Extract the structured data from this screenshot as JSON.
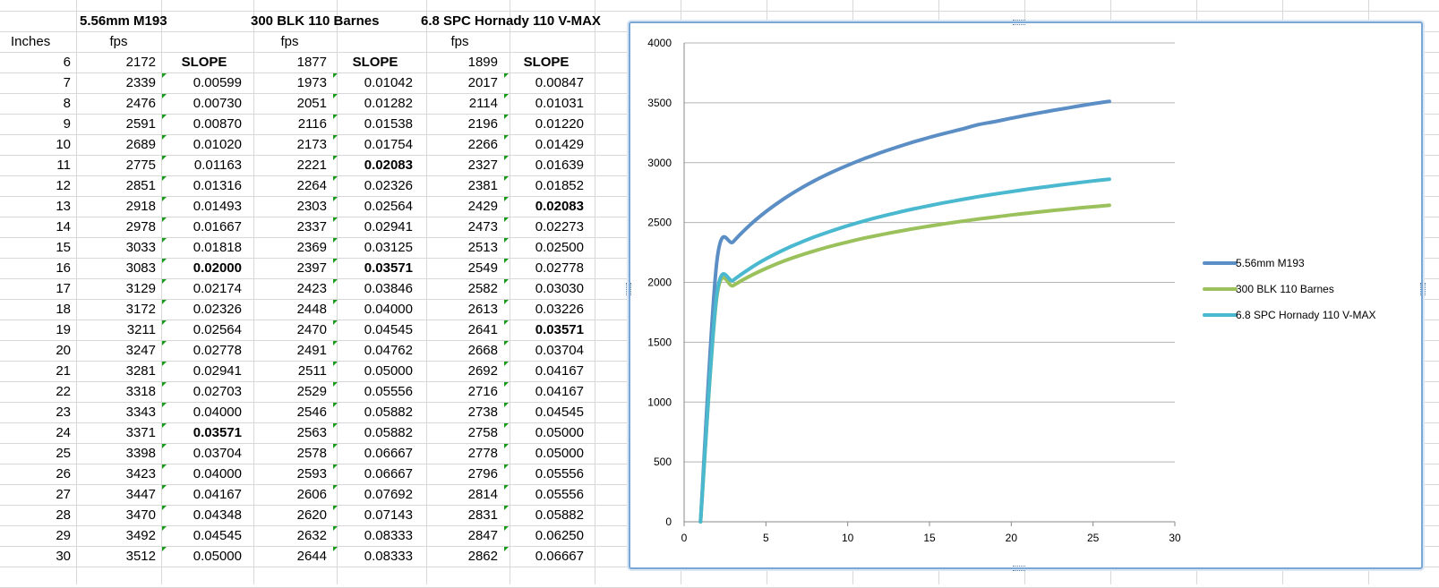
{
  "sheet": {
    "headers": {
      "col_inches": "Inches",
      "series_names": [
        "5.56mm M193",
        "300 BLK 110 Barnes",
        "6.8 SPC Hornady 110 V-MAX"
      ],
      "fps_label": "fps",
      "slope_label": "SLOPE"
    },
    "rows": [
      {
        "inches": "6",
        "v1": "2172",
        "s1": "SLOPE",
        "v2": "1877",
        "s2": "SLOPE",
        "v3": "1899",
        "s3": "SLOPE"
      },
      {
        "inches": "7",
        "v1": "2339",
        "s1": "0.00599",
        "v2": "1973",
        "s2": "0.01042",
        "v3": "2017",
        "s3": "0.00847"
      },
      {
        "inches": "8",
        "v1": "2476",
        "s1": "0.00730",
        "v2": "2051",
        "s2": "0.01282",
        "v3": "2114",
        "s3": "0.01031"
      },
      {
        "inches": "9",
        "v1": "2591",
        "s1": "0.00870",
        "v2": "2116",
        "s2": "0.01538",
        "v3": "2196",
        "s3": "0.01220"
      },
      {
        "inches": "10",
        "v1": "2689",
        "s1": "0.01020",
        "v2": "2173",
        "s2": "0.01754",
        "v3": "2266",
        "s3": "0.01429"
      },
      {
        "inches": "11",
        "v1": "2775",
        "s1": "0.01163",
        "v2": "2221",
        "s2": "0.02083",
        "v3": "2327",
        "s3": "0.01639"
      },
      {
        "inches": "12",
        "v1": "2851",
        "s1": "0.01316",
        "v2": "2264",
        "s2": "0.02326",
        "v3": "2381",
        "s3": "0.01852"
      },
      {
        "inches": "13",
        "v1": "2918",
        "s1": "0.01493",
        "v2": "2303",
        "s2": "0.02564",
        "v3": "2429",
        "s3": "0.02083"
      },
      {
        "inches": "14",
        "v1": "2978",
        "s1": "0.01667",
        "v2": "2337",
        "s2": "0.02941",
        "v3": "2473",
        "s3": "0.02273"
      },
      {
        "inches": "15",
        "v1": "3033",
        "s1": "0.01818",
        "v2": "2369",
        "s2": "0.03125",
        "v3": "2513",
        "s3": "0.02500"
      },
      {
        "inches": "16",
        "v1": "3083",
        "s1": "0.02000",
        "v2": "2397",
        "s2": "0.03571",
        "v3": "2549",
        "s3": "0.02778"
      },
      {
        "inches": "17",
        "v1": "3129",
        "s1": "0.02174",
        "v2": "2423",
        "s2": "0.03846",
        "v3": "2582",
        "s3": "0.03030"
      },
      {
        "inches": "18",
        "v1": "3172",
        "s1": "0.02326",
        "v2": "2448",
        "s2": "0.04000",
        "v3": "2613",
        "s3": "0.03226"
      },
      {
        "inches": "19",
        "v1": "3211",
        "s1": "0.02564",
        "v2": "2470",
        "s2": "0.04545",
        "v3": "2641",
        "s3": "0.03571"
      },
      {
        "inches": "20",
        "v1": "3247",
        "s1": "0.02778",
        "v2": "2491",
        "s2": "0.04762",
        "v3": "2668",
        "s3": "0.03704"
      },
      {
        "inches": "21",
        "v1": "3281",
        "s1": "0.02941",
        "v2": "2511",
        "s2": "0.05000",
        "v3": "2692",
        "s3": "0.04167"
      },
      {
        "inches": "22",
        "v1": "3318",
        "s1": "0.02703",
        "v2": "2529",
        "s2": "0.05556",
        "v3": "2716",
        "s3": "0.04167"
      },
      {
        "inches": "23",
        "v1": "3343",
        "s1": "0.04000",
        "v2": "2546",
        "s2": "0.05882",
        "v3": "2738",
        "s3": "0.04545"
      },
      {
        "inches": "24",
        "v1": "3371",
        "s1": "0.03571",
        "v2": "2563",
        "s2": "0.05882",
        "v3": "2758",
        "s3": "0.05000"
      },
      {
        "inches": "25",
        "v1": "3398",
        "s1": "0.03704",
        "v2": "2578",
        "s2": "0.06667",
        "v3": "2778",
        "s3": "0.05000"
      },
      {
        "inches": "26",
        "v1": "3423",
        "s1": "0.04000",
        "v2": "2593",
        "s2": "0.06667",
        "v3": "2796",
        "s3": "0.05556"
      },
      {
        "inches": "27",
        "v1": "3447",
        "s1": "0.04167",
        "v2": "2606",
        "s2": "0.07692",
        "v3": "2814",
        "s3": "0.05556"
      },
      {
        "inches": "28",
        "v1": "3470",
        "s1": "0.04348",
        "v2": "2620",
        "s2": "0.07143",
        "v3": "2831",
        "s3": "0.05882"
      },
      {
        "inches": "29",
        "v1": "3492",
        "s1": "0.04545",
        "v2": "2632",
        "s2": "0.08333",
        "v3": "2847",
        "s3": "0.06250"
      },
      {
        "inches": "30",
        "v1": "3512",
        "s1": "0.05000",
        "v2": "2644",
        "s2": "0.08333",
        "v3": "2862",
        "s3": "0.06667"
      }
    ],
    "bold_slopes": [
      {
        "row": 5,
        "col": "s2"
      },
      {
        "row": 7,
        "col": "s3"
      },
      {
        "row": 10,
        "col": "s1"
      },
      {
        "row": 10,
        "col": "s2"
      },
      {
        "row": 13,
        "col": "s3"
      },
      {
        "row": 18,
        "col": "s1"
      }
    ]
  },
  "chart_data": {
    "type": "line",
    "title": "",
    "xlabel": "",
    "ylabel": "",
    "xlim": [
      0,
      30
    ],
    "ylim": [
      0,
      4000
    ],
    "x_ticks": [
      "0",
      "5",
      "10",
      "15",
      "20",
      "25",
      "30"
    ],
    "y_ticks": [
      "0",
      "500",
      "1000",
      "1500",
      "2000",
      "2500",
      "3000",
      "3500",
      "4000"
    ],
    "grid": "horizontal",
    "legend_position": "right",
    "series": [
      {
        "name": "5.56mm M193",
        "color": "#5b8ec4",
        "points": [
          [
            1,
            0
          ],
          [
            2,
            2172
          ],
          [
            3,
            2339
          ],
          [
            4,
            2476
          ],
          [
            5,
            2591
          ],
          [
            6,
            2689
          ],
          [
            7,
            2775
          ],
          [
            8,
            2851
          ],
          [
            9,
            2918
          ],
          [
            10,
            2978
          ],
          [
            11,
            3033
          ],
          [
            12,
            3083
          ],
          [
            13,
            3129
          ],
          [
            14,
            3172
          ],
          [
            15,
            3211
          ],
          [
            16,
            3247
          ],
          [
            17,
            3281
          ],
          [
            18,
            3318
          ],
          [
            19,
            3343
          ],
          [
            20,
            3371
          ],
          [
            21,
            3398
          ],
          [
            22,
            3423
          ],
          [
            23,
            3447
          ],
          [
            24,
            3470
          ],
          [
            25,
            3492
          ],
          [
            26,
            3512
          ]
        ]
      },
      {
        "name": "300 BLK 110 Barnes",
        "color": "#9bc15c",
        "points": [
          [
            1,
            0
          ],
          [
            2,
            1877
          ],
          [
            3,
            1973
          ],
          [
            4,
            2051
          ],
          [
            5,
            2116
          ],
          [
            6,
            2173
          ],
          [
            7,
            2221
          ],
          [
            8,
            2264
          ],
          [
            9,
            2303
          ],
          [
            10,
            2337
          ],
          [
            11,
            2369
          ],
          [
            12,
            2397
          ],
          [
            13,
            2423
          ],
          [
            14,
            2448
          ],
          [
            15,
            2470
          ],
          [
            16,
            2491
          ],
          [
            17,
            2511
          ],
          [
            18,
            2529
          ],
          [
            19,
            2546
          ],
          [
            20,
            2563
          ],
          [
            21,
            2578
          ],
          [
            22,
            2593
          ],
          [
            23,
            2606
          ],
          [
            24,
            2620
          ],
          [
            25,
            2632
          ],
          [
            26,
            2644
          ]
        ]
      },
      {
        "name": "6.8 SPC Hornady 110 V-MAX",
        "color": "#4ab8cf",
        "points": [
          [
            1,
            0
          ],
          [
            2,
            1899
          ],
          [
            3,
            2017
          ],
          [
            4,
            2114
          ],
          [
            5,
            2196
          ],
          [
            6,
            2266
          ],
          [
            7,
            2327
          ],
          [
            8,
            2381
          ],
          [
            9,
            2429
          ],
          [
            10,
            2473
          ],
          [
            11,
            2513
          ],
          [
            12,
            2549
          ],
          [
            13,
            2582
          ],
          [
            14,
            2613
          ],
          [
            15,
            2641
          ],
          [
            16,
            2668
          ],
          [
            17,
            2692
          ],
          [
            18,
            2716
          ],
          [
            19,
            2738
          ],
          [
            20,
            2758
          ],
          [
            21,
            2778
          ],
          [
            22,
            2796
          ],
          [
            23,
            2814
          ],
          [
            24,
            2831
          ],
          [
            25,
            2847
          ],
          [
            26,
            2862
          ]
        ]
      }
    ]
  }
}
